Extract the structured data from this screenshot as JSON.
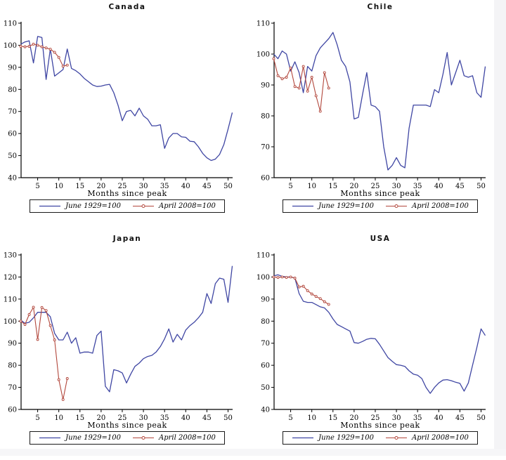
{
  "page": {
    "background": "#ffffff",
    "right_gutter_color": "#f4f4f6",
    "bottom_gutter_color": "#f6f6f8",
    "axis_color": "#000000",
    "line_blue": "#3f46a3",
    "line_red": "#b2473c"
  },
  "chart_data": [
    {
      "type": "line",
      "title": "Canada",
      "xlabel": "Months since peak",
      "ylim": [
        40,
        110
      ],
      "yticks": [
        40,
        50,
        60,
        70,
        80,
        90,
        100,
        110
      ],
      "xticks": [
        5,
        10,
        15,
        20,
        25,
        30,
        35,
        40,
        45,
        50
      ],
      "legend_position": "bottom",
      "grid": false,
      "legend": [
        {
          "label": "June 1929=100"
        },
        {
          "label": "April 2008=100"
        }
      ],
      "series": [
        {
          "name": "June 1929=100",
          "color": "#3f46a3",
          "marker": false,
          "x_start": 1,
          "values": [
            100.5,
            101.5,
            102,
            92,
            104,
            103.5,
            84.5,
            98.3,
            86,
            87.5,
            89,
            98.3,
            89.5,
            88.5,
            87,
            85,
            83.5,
            82,
            81.3,
            81.5,
            82,
            82.3,
            78.5,
            72.8,
            65.8,
            70,
            70.5,
            68,
            71.5,
            68,
            66.5,
            63.5,
            63.5,
            64,
            53.3,
            58,
            60,
            60,
            58.5,
            58.3,
            56.5,
            56.3,
            54,
            51,
            49,
            47.8,
            48.4,
            50.5,
            55,
            62,
            69.5
          ]
        },
        {
          "name": "April 2008=100",
          "color": "#b2473c",
          "marker": true,
          "x_start": 1,
          "values": [
            99.5,
            99.3,
            99.5,
            100.5,
            100,
            99.3,
            98.8,
            98.2,
            96.8,
            94.5,
            90.5,
            91
          ]
        }
      ]
    },
    {
      "type": "line",
      "title": "Chile",
      "xlabel": "Months since peak",
      "ylim": [
        60,
        110
      ],
      "yticks": [
        60,
        70,
        80,
        90,
        100,
        110
      ],
      "xticks": [
        5,
        10,
        15,
        20,
        25,
        30,
        35,
        40,
        45,
        50
      ],
      "legend_position": "bottom",
      "grid": false,
      "legend": [
        {
          "label": "June 1929=100"
        },
        {
          "label": "April 2008=100"
        }
      ],
      "series": [
        {
          "name": "June 1929=100",
          "color": "#3f46a3",
          "marker": false,
          "x_start": 1,
          "values": [
            100,
            98.5,
            101,
            100,
            94.5,
            97.5,
            94,
            87.5,
            96,
            94.5,
            99.5,
            102,
            103.5,
            105,
            107,
            103,
            98,
            96,
            91,
            79,
            79.5,
            87,
            94,
            83.5,
            83,
            81.5,
            70,
            62.5,
            64,
            66.5,
            64,
            63.2,
            76,
            83.5,
            83.5,
            83.5,
            83.5,
            83,
            88.5,
            87.5,
            93.5,
            100.5,
            90,
            94,
            98,
            93,
            92.5,
            93,
            87.5,
            86,
            96
          ]
        },
        {
          "name": "April 2008=100",
          "color": "#b2473c",
          "marker": true,
          "x_start": 1,
          "values": [
            98.5,
            93,
            92,
            92.5,
            95.5,
            89.5,
            89,
            96,
            88,
            92.5,
            86.5,
            81.5,
            94,
            89
          ]
        }
      ]
    },
    {
      "type": "line",
      "title": "Japan",
      "xlabel": "Months since peak",
      "ylim": [
        60,
        130
      ],
      "yticks": [
        60,
        70,
        80,
        90,
        100,
        110,
        120,
        130
      ],
      "xticks": [
        5,
        10,
        15,
        20,
        25,
        30,
        35,
        40,
        45,
        50
      ],
      "legend_position": "bottom",
      "grid": false,
      "legend": [
        {
          "label": "June 1929=100"
        },
        {
          "label": "April 2008=100"
        }
      ],
      "series": [
        {
          "name": "June 1929=100",
          "color": "#3f46a3",
          "marker": false,
          "x_start": 1,
          "values": [
            100.5,
            99,
            99.5,
            101.5,
            104,
            104,
            104,
            102,
            94.5,
            91.5,
            91.5,
            95,
            90,
            92.5,
            85.5,
            86,
            86,
            85.5,
            93.5,
            95.5,
            70.5,
            68,
            78,
            77.5,
            76.5,
            72,
            76,
            79.5,
            81,
            83,
            84,
            84.5,
            86,
            88.5,
            92,
            96.5,
            90.5,
            94,
            91.5,
            96,
            98,
            99.5,
            101.5,
            104,
            112.5,
            108,
            117,
            119.5,
            119,
            108.5,
            125
          ]
        },
        {
          "name": "April 2008=100",
          "color": "#b2473c",
          "marker": true,
          "x_start": 1,
          "values": [
            100,
            98.5,
            103,
            106.3,
            91.7,
            106.2,
            104.8,
            98,
            91.5,
            73.5,
            64.5,
            74
          ]
        }
      ]
    },
    {
      "type": "line",
      "title": "USA",
      "xlabel": "Months since peak",
      "ylim": [
        40,
        110
      ],
      "yticks": [
        40,
        50,
        60,
        70,
        80,
        90,
        100,
        110
      ],
      "xticks": [
        5,
        10,
        15,
        20,
        25,
        30,
        35,
        40,
        45,
        50
      ],
      "legend_position": "bottom",
      "grid": false,
      "legend": [
        {
          "label": "June 1929=100"
        },
        {
          "label": "April 2008=100"
        }
      ],
      "series": [
        {
          "name": "June 1929=100",
          "color": "#3f46a3",
          "marker": false,
          "x_start": 1,
          "values": [
            100.5,
            101,
            100.3,
            100,
            100,
            99.5,
            92.5,
            89,
            88.5,
            88.5,
            87.5,
            86.5,
            86,
            84,
            81,
            78.5,
            77.5,
            76.5,
            75.5,
            70.3,
            70,
            70.8,
            71.8,
            72.2,
            72,
            69.5,
            66.5,
            63.5,
            61.8,
            60.3,
            60,
            59.5,
            57.5,
            56,
            55.5,
            54,
            50,
            47.3,
            50,
            52,
            53.3,
            53.5,
            53,
            52.3,
            51.8,
            48.3,
            52,
            60,
            68,
            76.5,
            73.5
          ]
        },
        {
          "name": "April 2008=100",
          "color": "#b2473c",
          "marker": true,
          "x_start": 1,
          "values": [
            100,
            99.8,
            100,
            99.8,
            100,
            99.5,
            95.5,
            95.8,
            93.8,
            92.3,
            91.2,
            90.2,
            88.8,
            87.6
          ]
        }
      ]
    }
  ]
}
